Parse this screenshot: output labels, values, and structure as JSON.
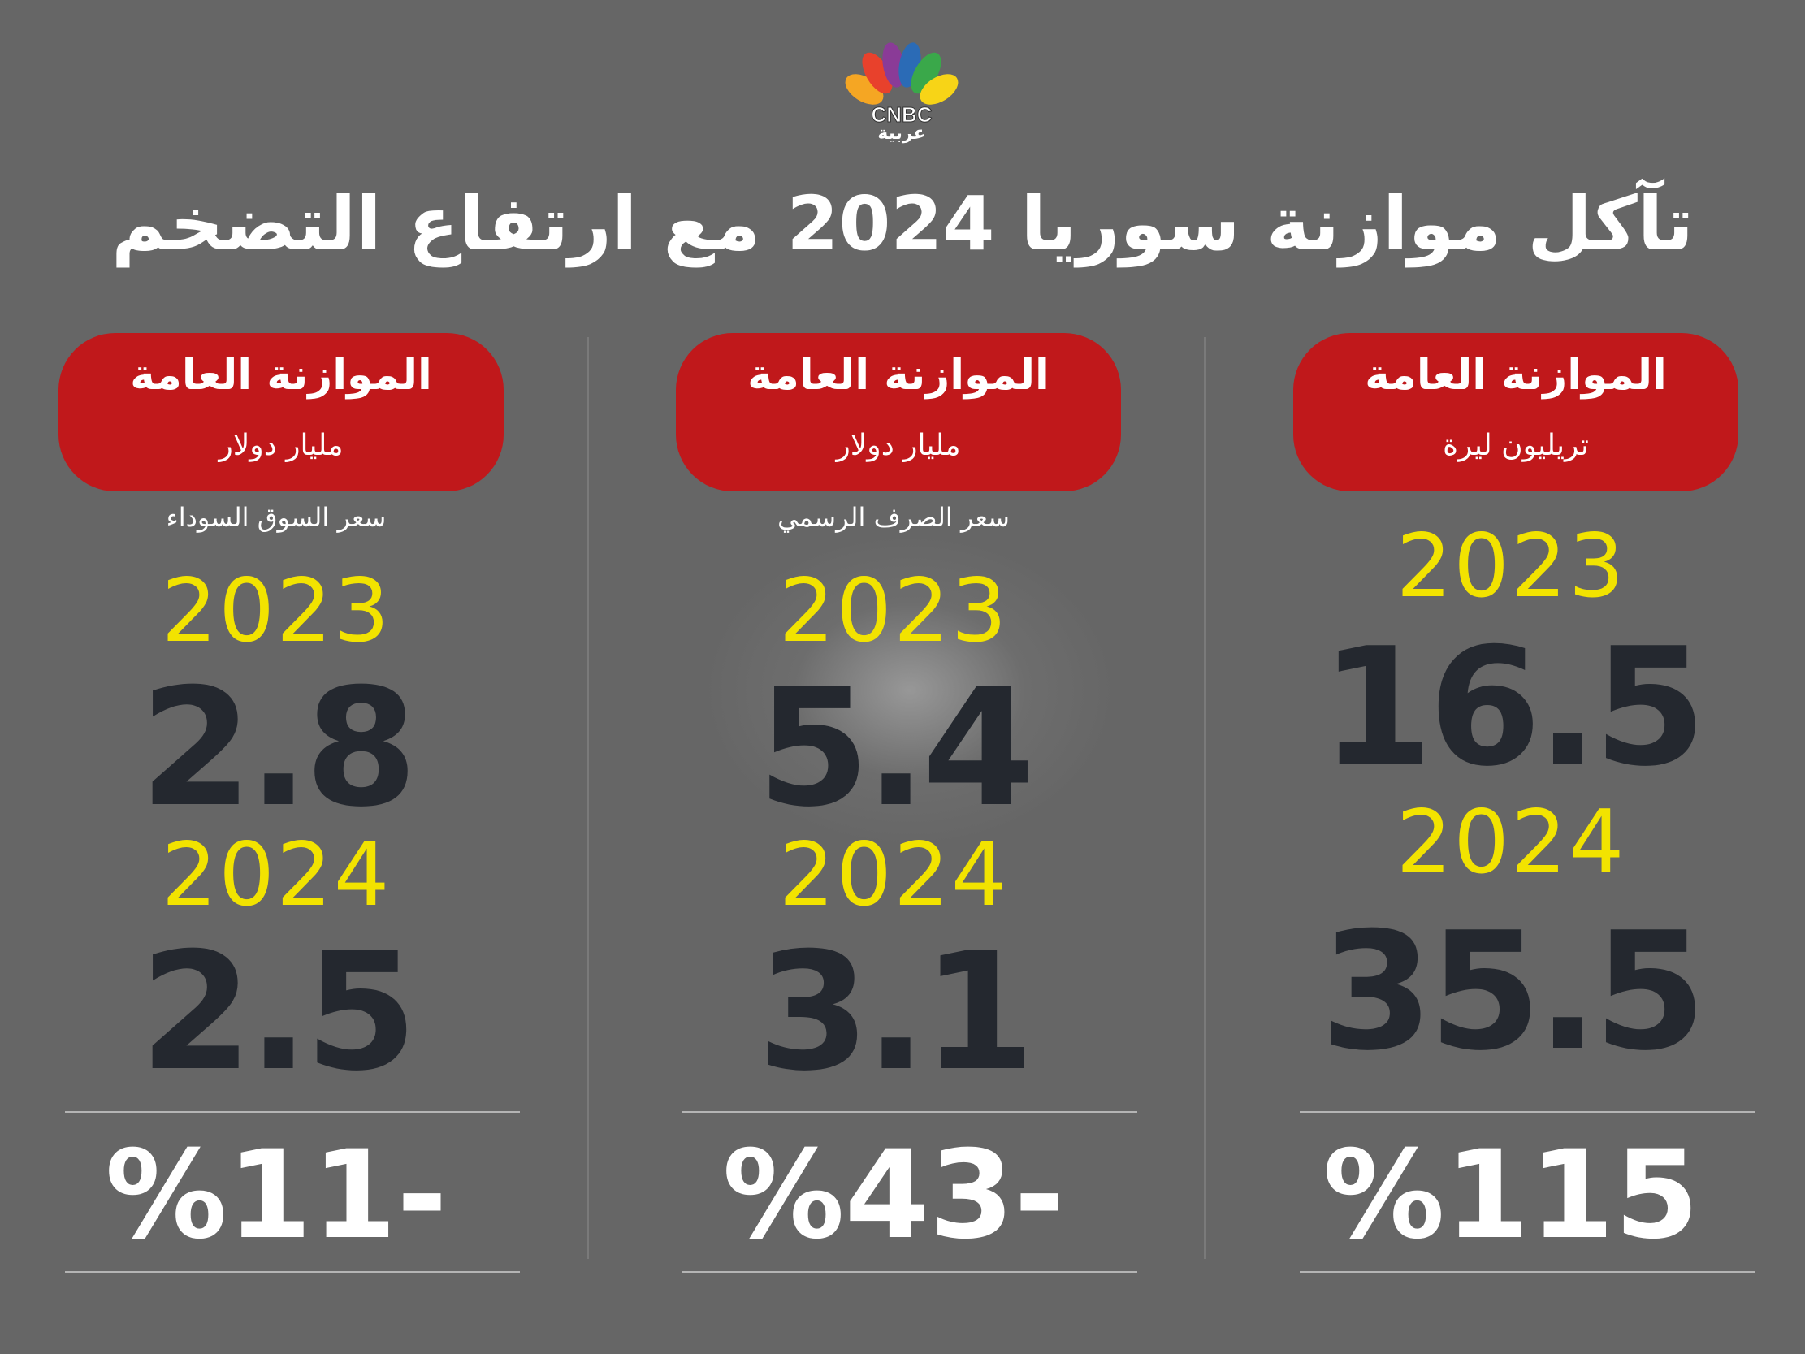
{
  "logo": {
    "text": "CNBC",
    "subtitle": "عربية",
    "colors": [
      "#f5a623",
      "#e8412c",
      "#8a3b97",
      "#2b6bb6",
      "#3aa84a",
      "#f7d417"
    ]
  },
  "title": "تآكل موازنة سوريا 2024 مع ارتفاع التضخم",
  "columns": [
    {
      "header": "الموازنة العامة",
      "unit": "تريليون ليرة",
      "rate_label": "",
      "year1": "2023",
      "value1": "16.5",
      "year2": "2024",
      "value2": "35.5",
      "change": "%115"
    },
    {
      "header": "الموازنة العامة",
      "unit": "مليار دولار",
      "rate_label": "سعر الصرف الرسمي",
      "year1": "2023",
      "value1": "5.4",
      "year2": "2024",
      "value2": "3.1",
      "change": "%43-"
    },
    {
      "header": "الموازنة العامة",
      "unit": "مليار دولار",
      "rate_label": "سعر السوق السوداء",
      "year1": "2023",
      "value1": "2.8",
      "year2": "2024",
      "value2": "2.5",
      "change": "%11-"
    }
  ],
  "colors": {
    "background": "#666666",
    "pill": "#c0181b",
    "year": "#f2e300",
    "value": "#24282f"
  }
}
